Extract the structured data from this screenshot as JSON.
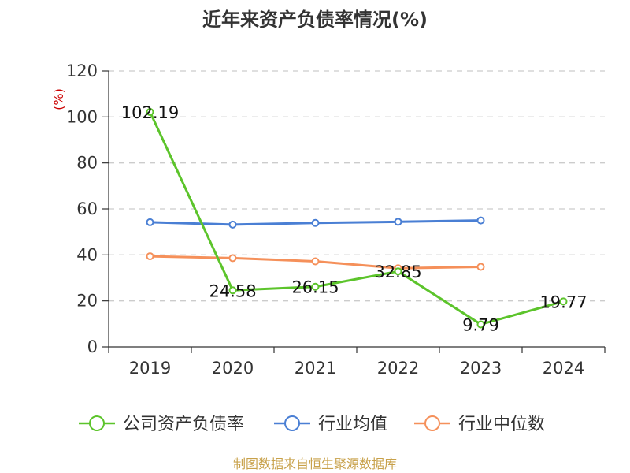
{
  "chart_data": {
    "type": "line",
    "title": "近年来资产负债率情况(%)",
    "ylabel": "(%)",
    "categories": [
      "2019",
      "2020",
      "2021",
      "2022",
      "2023",
      "2024"
    ],
    "ylim": [
      0,
      120
    ],
    "yticks": [
      0,
      20,
      40,
      60,
      80,
      100,
      120
    ],
    "grid": true,
    "legend_position": "bottom",
    "series": [
      {
        "name": "公司资产负债率",
        "color": "#5cc42b",
        "values": [
          102.19,
          24.58,
          26.15,
          32.85,
          9.79,
          19.77
        ],
        "labels": [
          "102.19",
          "24.58",
          "26.15",
          "32.85",
          "9.79",
          "19.77"
        ]
      },
      {
        "name": "行业均值",
        "color": "#4a7fd4",
        "values": [
          54.2,
          53.2,
          53.9,
          54.4,
          55.0,
          null
        ]
      },
      {
        "name": "行业中位数",
        "color": "#f5905a",
        "values": [
          39.4,
          38.6,
          37.2,
          34.2,
          34.8,
          null
        ]
      }
    ]
  },
  "footer": {
    "source": "制图数据来自恒生聚源数据库"
  }
}
